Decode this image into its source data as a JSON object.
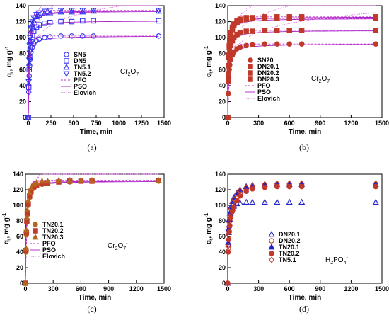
{
  "chart_data": [
    {
      "type": "scatter",
      "caption": "(a)",
      "xlabel": "Time, min",
      "ylabel": "qt, mg g-1",
      "ion_label": "Cr2O72-",
      "xlim": [
        0,
        1500
      ],
      "ylim": [
        0,
        140
      ],
      "xticks": [
        0,
        250,
        500,
        750,
        1000,
        1250,
        1500
      ],
      "yticks": [
        0,
        20,
        40,
        60,
        80,
        100,
        120,
        140
      ],
      "legend_position": "middle-right",
      "fit_lines": [
        {
          "name": "PFO",
          "style": "dashed"
        },
        {
          "name": "PSO",
          "style": "solid"
        },
        {
          "name": "Elovich",
          "style": "dotted"
        }
      ],
      "series": [
        {
          "name": "SN5",
          "marker": "circle-open",
          "color": "#3333ee",
          "x": [
            0,
            5,
            10,
            15,
            20,
            30,
            45,
            60,
            90,
            120,
            180,
            240,
            360,
            480,
            600,
            720,
            1440
          ],
          "y": [
            0,
            32,
            52,
            65,
            73,
            82,
            88,
            92,
            96,
            98,
            100,
            101,
            102,
            102,
            102,
            102,
            102
          ]
        },
        {
          "name": "DN5",
          "marker": "square-open",
          "color": "#3333ee",
          "x": [
            0,
            5,
            10,
            15,
            20,
            30,
            45,
            60,
            90,
            120,
            180,
            240,
            360,
            480,
            600,
            720,
            1440
          ],
          "y": [
            0,
            38,
            60,
            75,
            85,
            95,
            103,
            108,
            113,
            116,
            118,
            119,
            120,
            120,
            121,
            121,
            121
          ]
        },
        {
          "name": "TN5.1",
          "marker": "triangle-up-open",
          "color": "#3333ee",
          "x": [
            0,
            5,
            10,
            15,
            20,
            30,
            45,
            60,
            90,
            120,
            180,
            240,
            360,
            480,
            600,
            720,
            1440
          ],
          "y": [
            0,
            42,
            68,
            85,
            96,
            108,
            116,
            121,
            126,
            128,
            130,
            131,
            132,
            132,
            132,
            133,
            133
          ]
        },
        {
          "name": "TN5.2",
          "marker": "triangle-down-open",
          "color": "#3333ee",
          "x": [
            0,
            5,
            10,
            15,
            20,
            30,
            45,
            60,
            90,
            120,
            180,
            240,
            360,
            480,
            600,
            720,
            1440
          ],
          "y": [
            0,
            45,
            72,
            90,
            100,
            112,
            120,
            125,
            129,
            131,
            133,
            134,
            134,
            134,
            134,
            134,
            134
          ]
        }
      ]
    },
    {
      "type": "scatter",
      "caption": "(b)",
      "xlabel": "Time, min",
      "ylabel": "qt, mg g-1",
      "ion_label": "Cr2O72-",
      "xlim": [
        0,
        1500
      ],
      "ylim": [
        0,
        140
      ],
      "xticks": [
        0,
        300,
        600,
        900,
        1200,
        1500
      ],
      "yticks": [
        0,
        20,
        40,
        60,
        80,
        100,
        120,
        140
      ],
      "legend_position": "middle-right",
      "fit_lines": [
        {
          "name": "PFO",
          "style": "dashed"
        },
        {
          "name": "PSO",
          "style": "solid"
        },
        {
          "name": "Elovich",
          "style": "dotted"
        }
      ],
      "series": [
        {
          "name": "SN20",
          "marker": "circle-filled",
          "color": "#c0392b",
          "x": [
            0,
            5,
            10,
            15,
            20,
            30,
            45,
            60,
            90,
            120,
            180,
            240,
            360,
            480,
            600,
            720,
            1440
          ],
          "y": [
            0,
            30,
            50,
            60,
            66,
            72,
            78,
            82,
            86,
            88,
            90,
            91,
            92,
            92,
            92,
            92,
            92
          ]
        },
        {
          "name": "DN20.1",
          "marker": "square-filled",
          "color": "#c0392b",
          "x": [
            0,
            5,
            10,
            15,
            20,
            30,
            45,
            60,
            90,
            120,
            180,
            240,
            360,
            480,
            600,
            720,
            1440
          ],
          "y": [
            0,
            45,
            65,
            75,
            82,
            90,
            96,
            100,
            104,
            106,
            108,
            108,
            109,
            109,
            109,
            109,
            109
          ]
        },
        {
          "name": "DN20.2",
          "marker": "square-filled",
          "color": "#c0392b",
          "x": [
            0,
            5,
            10,
            15,
            20,
            30,
            45,
            60,
            90,
            120,
            180,
            240,
            360,
            480,
            600,
            720,
            1440
          ],
          "y": [
            0,
            55,
            78,
            90,
            98,
            106,
            113,
            117,
            121,
            123,
            125,
            125,
            126,
            126,
            126,
            126,
            126
          ]
        },
        {
          "name": "DN20.3",
          "marker": "square-filled",
          "color": "#c0392b",
          "x": [
            0,
            5,
            10,
            15,
            20,
            30,
            45,
            60,
            90,
            120,
            180,
            240,
            360,
            480,
            600,
            720,
            1440
          ],
          "y": [
            0,
            52,
            75,
            88,
            96,
            104,
            110,
            115,
            119,
            121,
            123,
            124,
            124,
            124,
            124,
            124,
            124
          ]
        }
      ]
    },
    {
      "type": "scatter",
      "caption": "(c)",
      "xlabel": "Time, min",
      "ylabel": "qt, mg g-1",
      "ion_label": "Cr2O72-",
      "xlim": [
        0,
        1500
      ],
      "ylim": [
        0,
        140
      ],
      "xticks": [
        0,
        300,
        600,
        900,
        1200,
        1500
      ],
      "yticks": [
        0,
        20,
        40,
        60,
        80,
        100,
        120,
        140
      ],
      "legend_position": "middle-left",
      "fit_lines": [
        {
          "name": "PFO",
          "style": "dashed"
        },
        {
          "name": "PSO",
          "style": "solid"
        },
        {
          "name": "Elovich",
          "style": "dotted"
        }
      ],
      "series": [
        {
          "name": "TN20.1",
          "marker": "circle-filled",
          "color": "#b5651d",
          "x": [
            0,
            5,
            10,
            15,
            20,
            30,
            45,
            60,
            90,
            120,
            180,
            240,
            360,
            480,
            600,
            720,
            1440
          ],
          "y": [
            0,
            40,
            62,
            78,
            88,
            100,
            110,
            116,
            122,
            125,
            127,
            128,
            130,
            130,
            131,
            131,
            131
          ]
        },
        {
          "name": "TN20.2",
          "marker": "square-filled",
          "color": "#c0392b",
          "x": [
            0,
            5,
            10,
            15,
            20,
            30,
            45,
            60,
            90,
            120,
            180,
            240,
            360,
            480,
            600,
            720,
            1440
          ],
          "y": [
            0,
            42,
            65,
            80,
            90,
            102,
            112,
            118,
            124,
            126,
            128,
            129,
            130,
            131,
            131,
            131,
            132
          ]
        },
        {
          "name": "TN20.3",
          "marker": "triangle-up-filled",
          "color": "#b5651d",
          "x": [
            0,
            5,
            10,
            15,
            20,
            30,
            45,
            60,
            90,
            120,
            180,
            240,
            360,
            480,
            600,
            720,
            1440
          ],
          "y": [
            0,
            45,
            68,
            84,
            94,
            106,
            116,
            122,
            127,
            129,
            131,
            131,
            132,
            132,
            132,
            132,
            132
          ]
        }
      ]
    },
    {
      "type": "scatter",
      "caption": "(d)",
      "xlabel": "Time, min",
      "ylabel": "qt, mg g-1",
      "ion_label": "H2PO4-",
      "xlim": [
        0,
        1500
      ],
      "ylim": [
        0,
        140
      ],
      "xticks": [
        0,
        300,
        600,
        900,
        1200,
        1500
      ],
      "yticks": [
        0,
        20,
        40,
        60,
        80,
        100,
        120,
        140
      ],
      "legend_position": "middle-left",
      "fit_lines": [],
      "series": [
        {
          "name": "DN20.1",
          "marker": "triangle-up-open",
          "color": "#2222cc",
          "x": [
            0,
            5,
            10,
            15,
            20,
            30,
            45,
            60,
            90,
            120,
            180,
            240,
            360,
            480,
            600,
            720,
            1440
          ],
          "y": [
            0,
            50,
            65,
            75,
            82,
            90,
            96,
            99,
            102,
            103,
            104,
            104,
            104,
            104,
            104,
            104,
            104
          ]
        },
        {
          "name": "DN20.2",
          "marker": "circle-open",
          "color": "#c0392b",
          "x": [
            0,
            5,
            10,
            15,
            20,
            30,
            45,
            60,
            90,
            120,
            180,
            240,
            360,
            480,
            600,
            720,
            1440
          ],
          "y": [
            0,
            45,
            62,
            72,
            80,
            88,
            96,
            102,
            110,
            115,
            121,
            124,
            126,
            126,
            126,
            126,
            126
          ]
        },
        {
          "name": "TN20.1",
          "marker": "triangle-up-filled",
          "color": "#2222cc",
          "x": [
            0,
            5,
            10,
            15,
            20,
            30,
            45,
            60,
            90,
            120,
            180,
            240,
            360,
            480,
            600,
            720,
            1440
          ],
          "y": [
            0,
            52,
            70,
            82,
            90,
            98,
            105,
            110,
            116,
            120,
            124,
            126,
            127,
            127,
            127,
            127,
            127
          ]
        },
        {
          "name": "TN20.2",
          "marker": "circle-filled",
          "color": "#c0392b",
          "x": [
            0,
            5,
            10,
            15,
            20,
            30,
            45,
            60,
            90,
            120,
            180,
            240,
            360,
            480,
            600,
            720,
            1440
          ],
          "y": [
            0,
            40,
            56,
            66,
            74,
            84,
            92,
            98,
            106,
            112,
            118,
            121,
            123,
            124,
            124,
            124,
            124
          ]
        },
        {
          "name": "TN5.1",
          "marker": "diamond-open",
          "color": "#c0392b",
          "x": [
            0,
            5,
            10,
            15,
            20,
            30,
            45,
            60,
            90,
            120,
            180,
            240,
            360,
            480,
            600,
            720,
            1440
          ],
          "y": [
            0,
            48,
            66,
            78,
            86,
            95,
            103,
            108,
            115,
            119,
            123,
            125,
            127,
            128,
            128,
            128,
            128
          ]
        }
      ]
    }
  ]
}
